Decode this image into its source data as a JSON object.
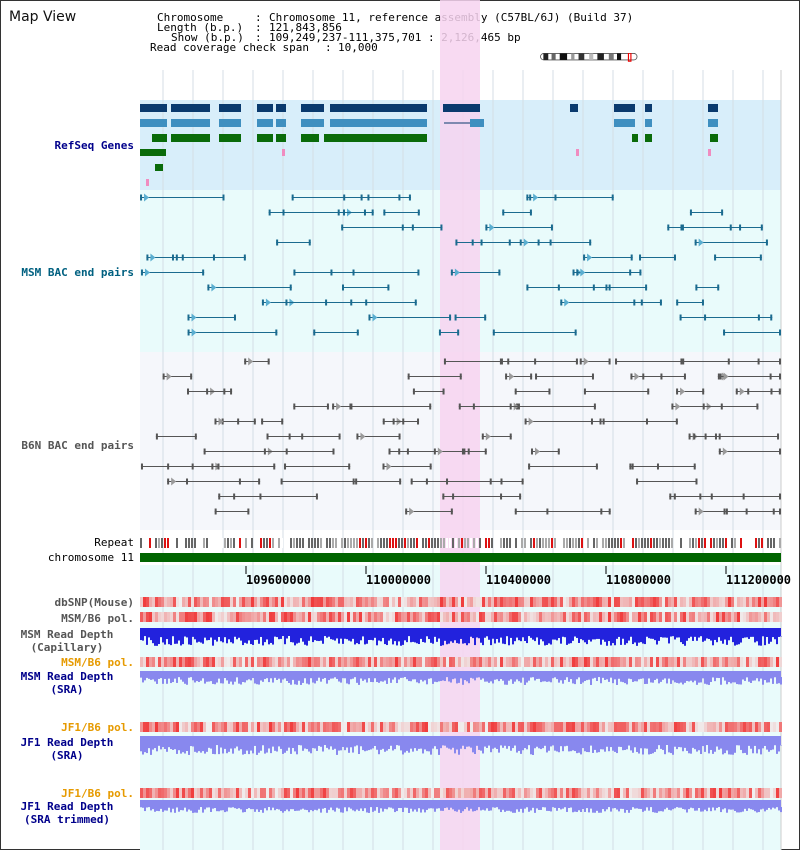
{
  "title": "Map View",
  "info": {
    "chromosome_label": "Chromosome",
    "chromosome_value": "Chromosome 11, reference assembly (C57BL/6J) (Build 37)",
    "length_label": "Length (b.p.)",
    "length_value": "121,843,856",
    "show_label": "Show (b.p.)",
    "show_value": "109,249,237-111,375,701 : 2,126,465 bp",
    "coverage_label": "Read coverage check span",
    "coverage_value": "10,000"
  },
  "tracks": {
    "refseq": "RefSeq Genes",
    "msm_bac": "MSM BAC end pairs",
    "b6n_bac": "B6N BAC end pairs",
    "repeat": "Repeat",
    "chromosome": "chromosome 11",
    "dbsnp": "dbSNP(Mouse)",
    "msm_b6_pol_1": "MSM/B6 pol.",
    "msm_read_depth_capillary_1": "MSM Read Depth",
    "msm_read_depth_capillary_2": "(Capillary)",
    "msm_b6_pol_2": "MSM/B6 pol.",
    "msm_read_depth_sra_1": "MSM Read Depth",
    "msm_read_depth_sra_2": "(SRA)",
    "jf1_b6_pol_1": "JF1/B6 pol.",
    "jf1_read_depth_sra_1": "JF1 Read Depth",
    "jf1_read_depth_sra_2": "(SRA)",
    "jf1_b6_pol_2": "JF1/B6 pol.",
    "jf1_read_depth_trim_1": "JF1 Read Depth",
    "jf1_read_depth_trim_2": "(SRA trimmed)"
  },
  "axis": {
    "ticks": [
      "109600000",
      "110000000",
      "110400000",
      "110800000",
      "111200000"
    ]
  },
  "colors": {
    "refseq_bg": "#d8eefa",
    "msm_bg": "#e9fbfb",
    "b6n_bg": "#f5f7fb",
    "highlight": "#f7d3f0",
    "gene_dark": "#0a3a6e",
    "gene_mid": "#3f8fc0",
    "gene_green": "#0a6b0a",
    "msm_line": "#1b6b8f",
    "b6n_line": "#555555",
    "chromosome_bar": "#006400",
    "depth_capillary": "#2222dd",
    "depth_sra": "#8888ee",
    "label_blue": "#00008b",
    "label_teal": "#006080",
    "label_orange": "#e69a00"
  }
}
